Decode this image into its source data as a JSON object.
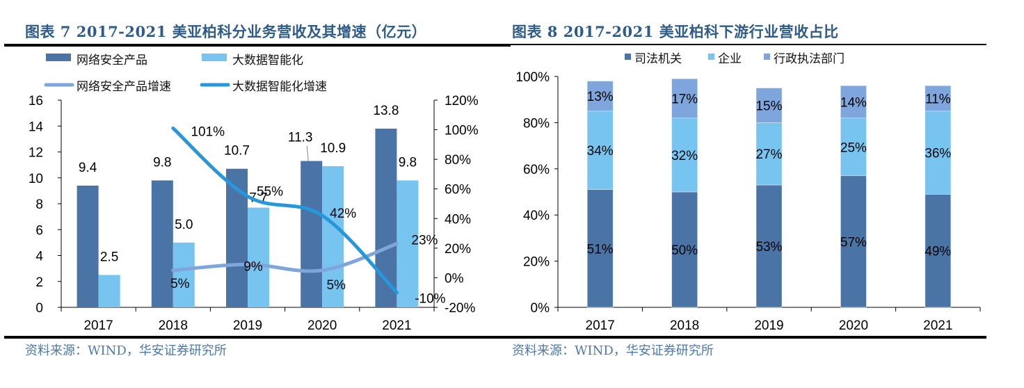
{
  "left_panel": {
    "title": "图表 7 2017-2021 美亚柏科分业务营收及其增速（亿元）",
    "source": "资料来源：WIND，华安证券研究所"
  },
  "right_panel": {
    "title": "图表 8  2017-2021 美亚柏科下游行业营收占比",
    "source": "资料来源：WIND，华安证券研究所"
  },
  "colors": {
    "title": "#2e5c8a",
    "dark_bar": "#4a74a5",
    "light_bar": "#78c4f0",
    "line_security_growth": "#7ea6dc",
    "line_bigdata_growth": "#2597da",
    "admin_segment": "#7ea6dc",
    "source_text": "#4f79a8"
  },
  "chart_data": [
    {
      "type": "bar",
      "title": "2017-2021 美亚柏科分业务营收及其增速（亿元）",
      "categories": [
        "2017",
        "2018",
        "2019",
        "2020",
        "2021"
      ],
      "legend": [
        "网络安全产品",
        "大数据智能化",
        "网络安全产品增速",
        "大数据智能化增速"
      ],
      "legend_position": "top",
      "series": [
        {
          "name": "网络安全产品",
          "kind": "bar",
          "axis": "left",
          "values": [
            9.4,
            9.8,
            10.7,
            11.3,
            13.8
          ],
          "labels": [
            "9.4",
            "9.8",
            "10.7",
            "11.3",
            "13.8"
          ]
        },
        {
          "name": "大数据智能化",
          "kind": "bar",
          "axis": "left",
          "values": [
            2.5,
            5.0,
            7.7,
            10.9,
            9.8
          ],
          "labels": [
            "2.5",
            "5.0",
            "7.7",
            "10.9",
            "9.8"
          ]
        },
        {
          "name": "网络安全产品增速",
          "kind": "line",
          "axis": "right",
          "values": [
            null,
            5,
            9,
            5,
            23
          ],
          "labels": [
            null,
            "5%",
            "9%",
            "5%",
            "23%"
          ]
        },
        {
          "name": "大数据智能化增速",
          "kind": "line",
          "axis": "right",
          "values": [
            null,
            101,
            55,
            42,
            -10
          ],
          "labels": [
            null,
            "101%",
            "55%",
            "42%",
            "-10%"
          ]
        }
      ],
      "y_left": {
        "min": 0,
        "max": 16,
        "ticks": [
          "0",
          "2",
          "4",
          "6",
          "8",
          "10",
          "12",
          "14",
          "16"
        ]
      },
      "y_right": {
        "min": -20,
        "max": 120,
        "ticks": [
          "-20%",
          "0%",
          "20%",
          "40%",
          "60%",
          "80%",
          "100%",
          "120%"
        ]
      },
      "grid": false
    },
    {
      "type": "bar",
      "stacked": true,
      "title": "2017-2021 美亚柏科下游行业营收占比",
      "categories": [
        "2017",
        "2018",
        "2019",
        "2020",
        "2021"
      ],
      "legend": [
        "司法机关",
        "企业",
        "行政执法部门"
      ],
      "legend_position": "top",
      "series": [
        {
          "name": "司法机关",
          "values": [
            51,
            50,
            53,
            57,
            49
          ],
          "labels": [
            "51%",
            "50%",
            "53%",
            "57%",
            "49%"
          ]
        },
        {
          "name": "企业",
          "values": [
            34,
            32,
            27,
            25,
            36
          ],
          "labels": [
            "34%",
            "32%",
            "27%",
            "25%",
            "36%"
          ]
        },
        {
          "name": "行政执法部门",
          "values": [
            13,
            17,
            15,
            14,
            11
          ],
          "labels": [
            "13%",
            "17%",
            "15%",
            "14%",
            "11%"
          ]
        }
      ],
      "y": {
        "min": 0,
        "max": 100,
        "ticks": [
          "0%",
          "20%",
          "40%",
          "60%",
          "80%",
          "100%"
        ]
      },
      "grid": false
    }
  ]
}
